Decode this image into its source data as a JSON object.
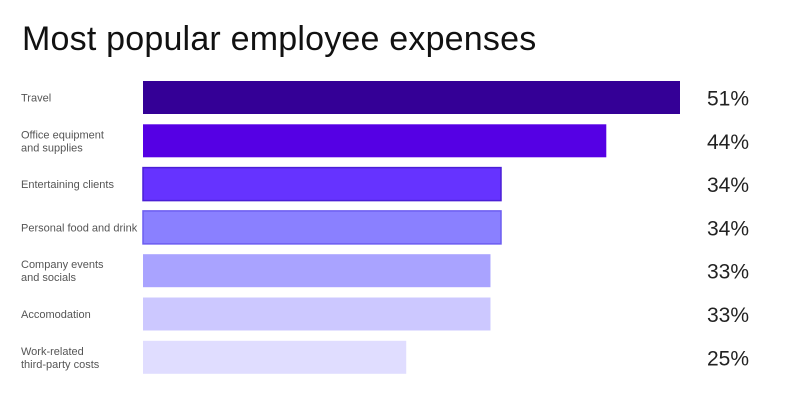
{
  "chart_data": {
    "type": "bar",
    "orientation": "horizontal",
    "title": "Most popular employee expenses",
    "categories": [
      [
        "Travel"
      ],
      [
        "Office equipment",
        "and supplies"
      ],
      [
        "Entertaining clients"
      ],
      [
        "Personal food and drink"
      ],
      [
        "Company events",
        "and socials"
      ],
      [
        "Accomodation"
      ],
      [
        "Work-related",
        "third-party costs"
      ]
    ],
    "values": [
      51,
      44,
      34,
      34,
      33,
      33,
      25
    ],
    "value_labels": [
      "51%",
      "44%",
      "34%",
      "34%",
      "33%",
      "33%",
      "25%"
    ],
    "colors": [
      "#340096",
      "#5500e4",
      "#6633ff",
      "#8a80ff",
      "#a9a3ff",
      "#ccc8ff",
      "#e0ddff"
    ],
    "bar_outline": [
      "",
      "",
      "#4a1fd6",
      "#6c5df0",
      "",
      "",
      ""
    ],
    "xlim": [
      0,
      51
    ],
    "grid": false,
    "legend": "none"
  }
}
